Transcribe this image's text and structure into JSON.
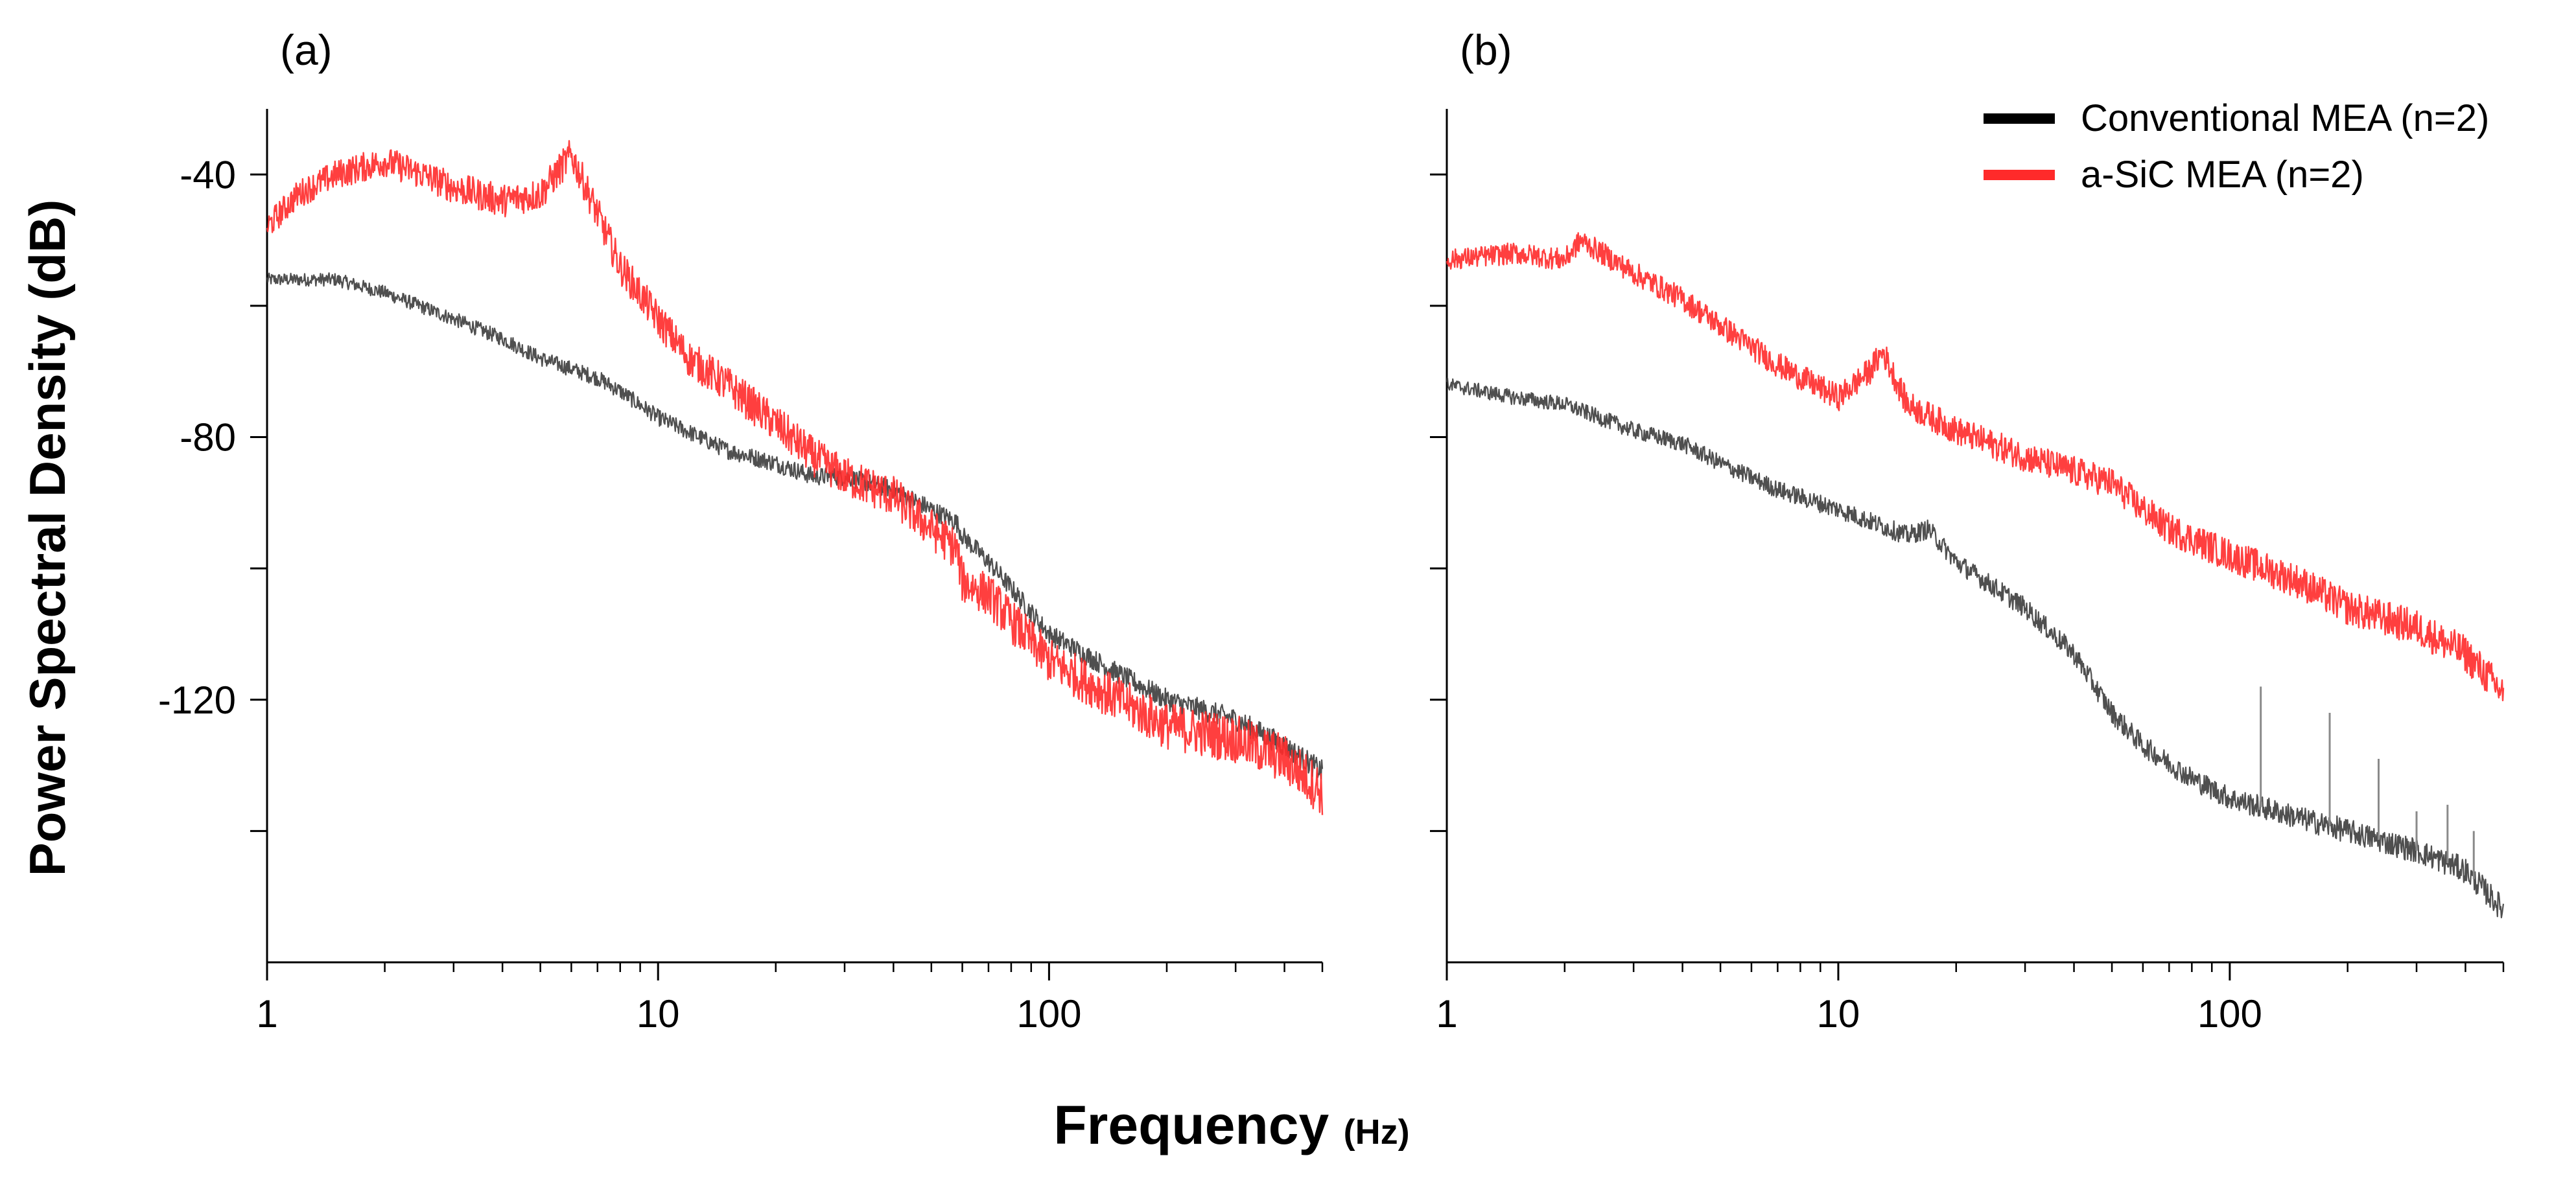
{
  "chart_data": [
    {
      "type": "line",
      "panel_label": "(a)",
      "xscale": "log",
      "xlim": [
        1,
        500
      ],
      "ylim": [
        -160,
        -30
      ],
      "x_ticks": [
        1,
        10,
        100
      ],
      "x_tick_labels": [
        "1",
        "10",
        "100"
      ],
      "y_ticks": [
        -40,
        -80,
        -120
      ],
      "y_tick_labels": [
        "-40",
        "-80",
        "-120"
      ],
      "y_minor_ticks": [
        -60,
        -100,
        -140
      ],
      "series": [
        {
          "name": "Conventional MEA (n=2)",
          "color": "#3c3c3c",
          "x": [
            1,
            1.5,
            2,
            3,
            4,
            5,
            7,
            8,
            10,
            15,
            20,
            25,
            30,
            40,
            50,
            58,
            60,
            70,
            80,
            100,
            150,
            200,
            300,
            400,
            500
          ],
          "y": [
            -56,
            -56,
            -58,
            -62,
            -65,
            -68,
            -71,
            -73,
            -77,
            -82,
            -84,
            -86,
            -86,
            -88,
            -91,
            -93,
            -95,
            -99,
            -103,
            -110,
            -116,
            -120,
            -123,
            -127,
            -131
          ],
          "noise": 1.6
        },
        {
          "name": "a-SiC MEA (n=2)",
          "color": "#ff2a2a",
          "x": [
            1,
            1.2,
            1.5,
            2,
            2.5,
            3,
            4,
            5,
            6,
            7,
            8,
            10,
            12,
            15,
            20,
            25,
            30,
            40,
            50,
            58,
            60,
            70,
            80,
            100,
            150,
            200,
            300,
            400,
            500
          ],
          "y": [
            -48,
            -43,
            -40,
            -38,
            -40,
            -42,
            -44,
            -43,
            -37,
            -46,
            -54,
            -62,
            -68,
            -72,
            -78,
            -83,
            -86,
            -89,
            -94,
            -97,
            -102,
            -104,
            -108,
            -114,
            -120,
            -124,
            -126,
            -129,
            -134
          ],
          "noise": 3.5
        }
      ]
    },
    {
      "type": "line",
      "panel_label": "(b)",
      "xscale": "log",
      "xlim": [
        1,
        500
      ],
      "ylim": [
        -160,
        -30
      ],
      "x_ticks": [
        1,
        10,
        100
      ],
      "x_tick_labels": [
        "1",
        "10",
        "100"
      ],
      "y_ticks": [
        -40,
        -80,
        -120
      ],
      "y_tick_labels": [
        "",
        "",
        ""
      ],
      "y_minor_ticks": [
        -60,
        -100,
        -140
      ],
      "series": [
        {
          "name": "Conventional MEA (n=2)",
          "color": "#3c3c3c",
          "x": [
            1,
            1.5,
            2,
            3,
            4,
            5,
            7,
            10,
            15,
            17,
            20,
            30,
            40,
            50,
            60,
            80,
            100,
            150,
            200,
            300,
            400,
            500
          ],
          "y": [
            -72,
            -74,
            -75,
            -79,
            -81,
            -84,
            -88,
            -91,
            -95,
            -94,
            -99,
            -106,
            -113,
            -122,
            -127,
            -132,
            -135,
            -138,
            -140,
            -143,
            -146,
            -152
          ],
          "noise": 1.8,
          "spikes": [
            {
              "x": 120,
              "y": -118
            },
            {
              "x": 180,
              "y": -122
            },
            {
              "x": 240,
              "y": -129
            },
            {
              "x": 300,
              "y": -137
            },
            {
              "x": 360,
              "y": -136
            },
            {
              "x": 420,
              "y": -140
            }
          ]
        },
        {
          "name": "a-SiC MEA (n=2)",
          "color": "#ff2a2a",
          "x": [
            1,
            1.5,
            2,
            2.2,
            3,
            4,
            5,
            7,
            10,
            12,
            13,
            15,
            20,
            30,
            50,
            60,
            70,
            100,
            150,
            200,
            300,
            400,
            500
          ],
          "y": [
            -53,
            -52,
            -53,
            -50,
            -55,
            -59,
            -63,
            -69,
            -74,
            -70,
            -67,
            -75,
            -79,
            -83,
            -87,
            -91,
            -94,
            -98,
            -102,
            -106,
            -109,
            -113,
            -119
          ],
          "noise": 2.6
        }
      ]
    }
  ],
  "legend": {
    "entries": [
      {
        "label": "Conventional MEA (n=2)",
        "color": "#000000"
      },
      {
        "label": "a-SiC MEA (n=2)",
        "color": "#ff2a2a"
      }
    ],
    "placement": "top-right"
  },
  "ylabel": "Power Spectral Density (dB)",
  "xlabel": "Frequency",
  "xlabel_unit": "(Hz)"
}
